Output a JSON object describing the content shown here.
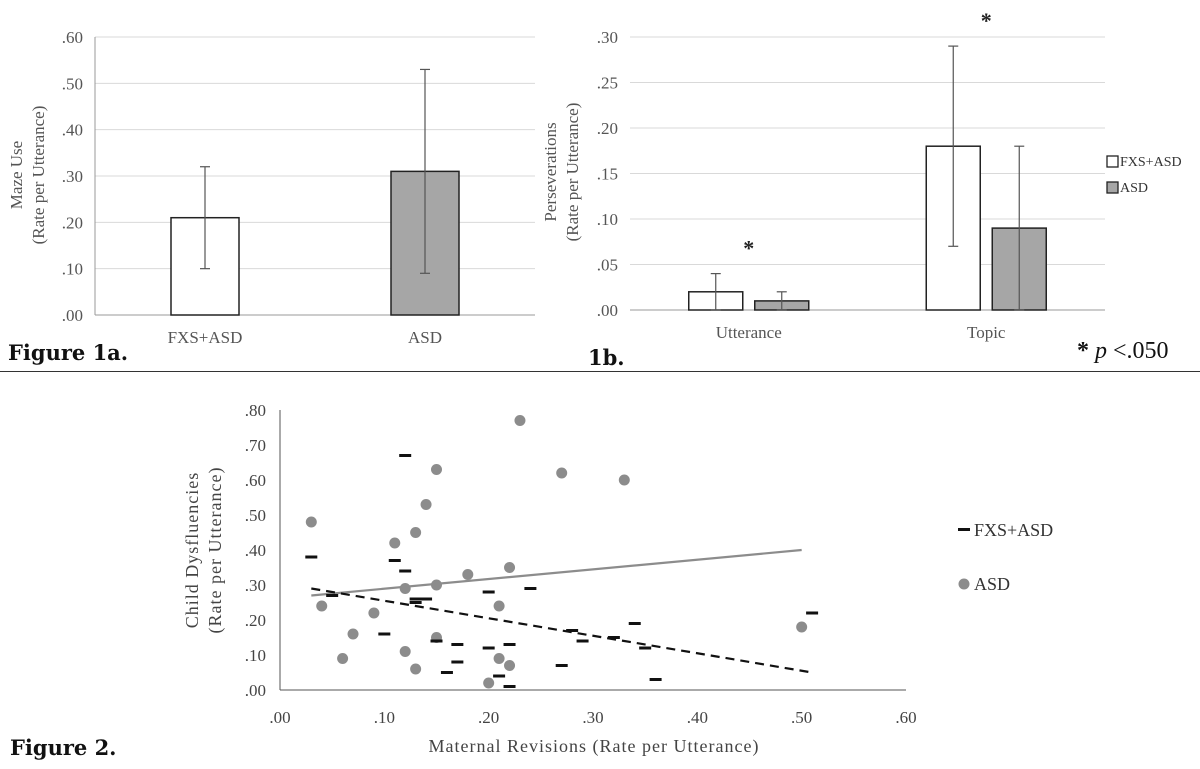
{
  "figure_labels": {
    "fig1a": "Figure 1a.",
    "fig1b": "1b.",
    "fig2": "Figure 2."
  },
  "sig_note": {
    "star": "*",
    "p": "p",
    "rest": " <.050"
  },
  "colors": {
    "open_bar": "#ffffff",
    "gray_bar": "#a6a6a6",
    "gray_series": "#8c8c8c",
    "black_series": "#111111",
    "grid": "#d9d9d9"
  },
  "chart_data": [
    {
      "id": "fig1a",
      "type": "bar",
      "ylabel": [
        "Maze Use",
        "(Rate per Utterance)"
      ],
      "categories": [
        "FXS+ASD",
        "ASD"
      ],
      "yticks": [
        ".00",
        ".10",
        ".20",
        ".30",
        ".40",
        ".50",
        ".60"
      ],
      "ylim": [
        0,
        0.6
      ],
      "grid": true,
      "values": [
        0.21,
        0.31
      ],
      "errors": [
        [
          0.1,
          0.32
        ],
        [
          0.09,
          0.53
        ]
      ],
      "fills": [
        "#ffffff",
        "#a6a6a6"
      ]
    },
    {
      "id": "fig1b",
      "type": "bar",
      "ylabel": [
        "Perseverations",
        "(Rate per Utterance)"
      ],
      "categories": [
        "Utterance",
        "Topic"
      ],
      "yticks": [
        ".00",
        ".05",
        ".10",
        ".15",
        ".20",
        ".25",
        ".30"
      ],
      "ylim": [
        0,
        0.3
      ],
      "grid": true,
      "legend_position": "right",
      "series": [
        {
          "name": "FXS+ASD",
          "values": [
            0.02,
            0.18
          ],
          "errors": [
            [
              0.0,
              0.04
            ],
            [
              0.07,
              0.29
            ]
          ],
          "fill": "#ffffff"
        },
        {
          "name": "ASD",
          "values": [
            0.01,
            0.09
          ],
          "errors": [
            [
              0.0,
              0.02
            ],
            [
              0.0,
              0.18
            ]
          ],
          "fill": "#a6a6a6"
        }
      ],
      "annotations": [
        "*",
        "*"
      ]
    },
    {
      "id": "fig2",
      "type": "scatter",
      "xlabel": "Maternal Revisions (Rate per Utterance)",
      "ylabel": [
        "Child Dysfluencies",
        "(Rate per Utterance)"
      ],
      "xticks": [
        ".00",
        ".10",
        ".20",
        ".30",
        ".40",
        ".50",
        ".60"
      ],
      "yticks": [
        ".00",
        ".10",
        ".20",
        ".30",
        ".40",
        ".50",
        ".60",
        ".70",
        ".80"
      ],
      "xlim": [
        0,
        0.6
      ],
      "ylim": [
        0,
        0.8
      ],
      "grid": false,
      "legend_position": "right",
      "series": [
        {
          "name": "FXS+ASD",
          "marker": "dash",
          "points": [
            [
              0.03,
              0.38
            ],
            [
              0.05,
              0.27
            ],
            [
              0.1,
              0.16
            ],
            [
              0.11,
              0.37
            ],
            [
              0.12,
              0.67
            ],
            [
              0.12,
              0.34
            ],
            [
              0.13,
              0.25
            ],
            [
              0.13,
              0.26
            ],
            [
              0.14,
              0.26
            ],
            [
              0.15,
              0.14
            ],
            [
              0.16,
              0.05
            ],
            [
              0.17,
              0.08
            ],
            [
              0.17,
              0.13
            ],
            [
              0.2,
              0.12
            ],
            [
              0.2,
              0.28
            ],
            [
              0.21,
              0.04
            ],
            [
              0.22,
              0.01
            ],
            [
              0.22,
              0.13
            ],
            [
              0.24,
              0.29
            ],
            [
              0.27,
              0.07
            ],
            [
              0.28,
              0.17
            ],
            [
              0.29,
              0.14
            ],
            [
              0.32,
              0.15
            ],
            [
              0.34,
              0.19
            ],
            [
              0.35,
              0.12
            ],
            [
              0.36,
              0.03
            ],
            [
              0.51,
              0.22
            ]
          ],
          "trend": [
            [
              0.03,
              0.29
            ],
            [
              0.51,
              0.05
            ]
          ]
        },
        {
          "name": "ASD",
          "marker": "circle",
          "points": [
            [
              0.03,
              0.48
            ],
            [
              0.04,
              0.24
            ],
            [
              0.06,
              0.09
            ],
            [
              0.07,
              0.16
            ],
            [
              0.09,
              0.22
            ],
            [
              0.11,
              0.42
            ],
            [
              0.12,
              0.11
            ],
            [
              0.12,
              0.29
            ],
            [
              0.13,
              0.06
            ],
            [
              0.13,
              0.45
            ],
            [
              0.14,
              0.53
            ],
            [
              0.15,
              0.63
            ],
            [
              0.15,
              0.3
            ],
            [
              0.15,
              0.15
            ],
            [
              0.18,
              0.33
            ],
            [
              0.2,
              0.02
            ],
            [
              0.21,
              0.09
            ],
            [
              0.21,
              0.24
            ],
            [
              0.22,
              0.07
            ],
            [
              0.22,
              0.35
            ],
            [
              0.23,
              0.77
            ],
            [
              0.27,
              0.62
            ],
            [
              0.33,
              0.6
            ],
            [
              0.5,
              0.18
            ]
          ],
          "trend": [
            [
              0.03,
              0.27
            ],
            [
              0.5,
              0.4
            ]
          ]
        }
      ]
    }
  ]
}
